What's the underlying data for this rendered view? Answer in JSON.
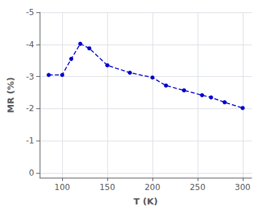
{
  "chart_data": {
    "type": "line",
    "x": [
      85,
      100,
      110,
      120,
      130,
      150,
      175,
      200,
      215,
      235,
      255,
      265,
      280,
      300
    ],
    "values": [
      -3.05,
      -3.05,
      -3.55,
      -4.02,
      -3.88,
      -3.35,
      -3.12,
      -2.97,
      -2.72,
      -2.57,
      -2.42,
      -2.35,
      -2.2,
      -2.02
    ],
    "color": "#0000cc",
    "marker": "circle",
    "line_style": "dashed",
    "xlabel": "T (K)",
    "ylabel": "MR (%)",
    "xlim": [
      75,
      310
    ],
    "ylim": [
      0.15,
      -5.0
    ],
    "xticks": [
      100,
      150,
      200,
      250,
      300
    ],
    "yticks": [
      -5,
      -4,
      -3,
      -2,
      -1,
      0
    ],
    "grid": true
  }
}
